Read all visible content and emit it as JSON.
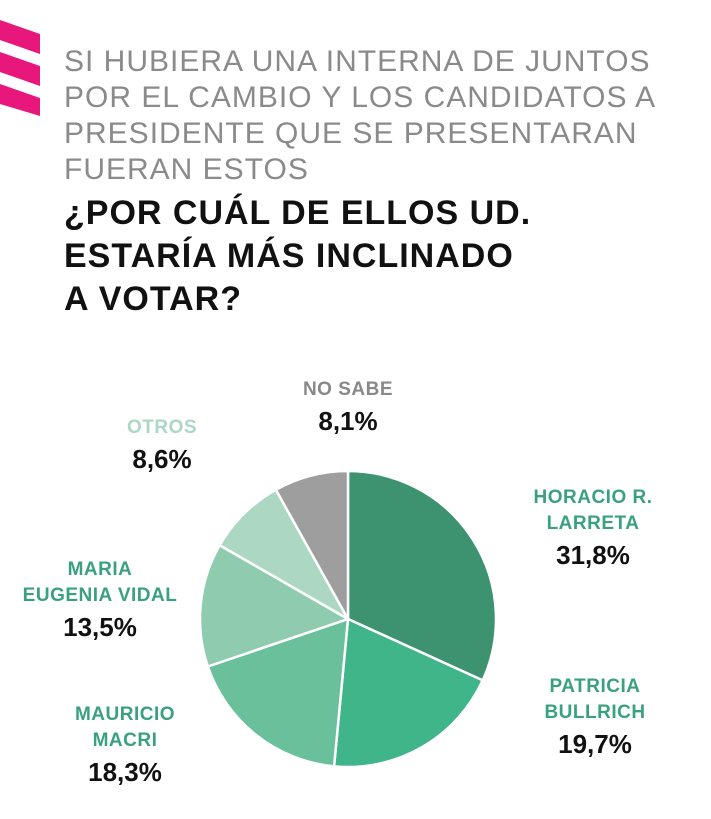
{
  "header": {
    "subtitle": "SI HUBIERA UNA INTERNA DE JUNTOS\nPOR EL CAMBIO Y LOS CANDIDATOS A\nPRESIDENTE QUE SE PRESENTARAN\nFUERAN ESTOS",
    "question": "¿POR CUÁL DE ELLOS UD.\nESTARÍA MÁS  INCLINADO\nA VOTAR?"
  },
  "colors": {
    "brand": "#e8177c",
    "larreta": "#3d9270",
    "bullrich": "#3fb589",
    "macri": "#6ac09a",
    "vidal": "#8fccaf",
    "otros": "#acd8c3",
    "nosabe": "#9e9e9e",
    "label_green": "#3aa17e",
    "label_gray": "#888888"
  },
  "chart_data": {
    "type": "pie",
    "title": "¿POR CUÁL DE ELLOS UD. ESTARÍA MÁS INCLINADO A VOTAR?",
    "start": "12 o'clock",
    "direction": "clockwise",
    "slices": [
      {
        "key": "larreta",
        "label": "HORACIO R.\nLARRETA",
        "value": 31.8,
        "value_label": "31,8%",
        "color": "#3d9270"
      },
      {
        "key": "bullrich",
        "label": "PATRICIA\nBULLRICH",
        "value": 19.7,
        "value_label": "19,7%",
        "color": "#3fb589"
      },
      {
        "key": "macri",
        "label": "MAURICIO\nMACRI",
        "value": 18.3,
        "value_label": "18,3%",
        "color": "#6ac09a"
      },
      {
        "key": "vidal",
        "label": "MARIA\nEUGENIA VIDAL",
        "value": 13.5,
        "value_label": "13,5%",
        "color": "#8fccaf"
      },
      {
        "key": "otros",
        "label": "OTROS",
        "value": 8.6,
        "value_label": "8,6%",
        "color": "#acd8c3"
      },
      {
        "key": "nosabe",
        "label": "NO SABE",
        "value": 8.1,
        "value_label": "8,1%",
        "color": "#9e9e9e"
      }
    ]
  }
}
